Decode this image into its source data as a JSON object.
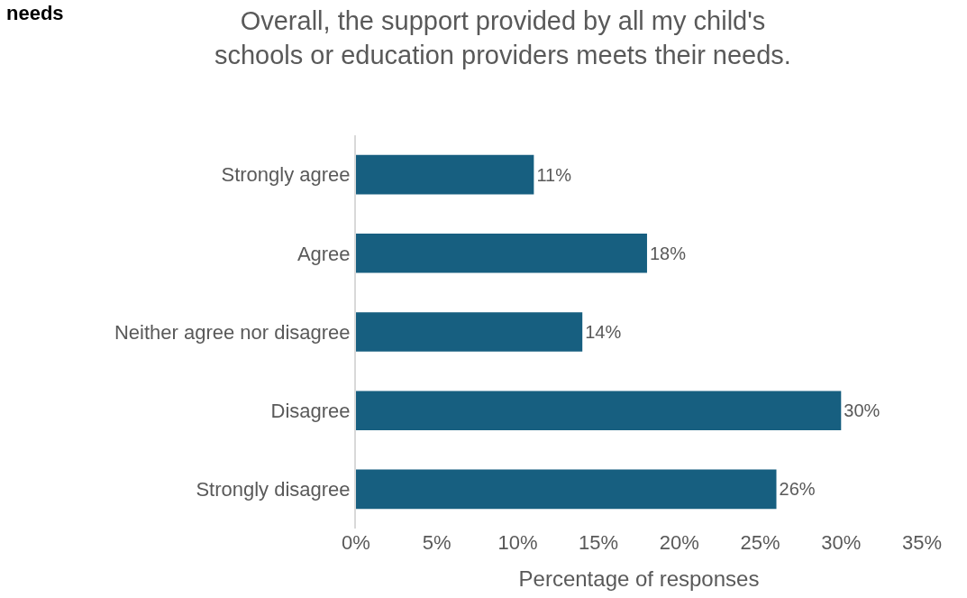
{
  "chart_data": {
    "type": "bar",
    "orientation": "horizontal",
    "title": "Overall, the support provided by all my child's\nschools or education providers meets their needs.",
    "xlabel": "Percentage of responses",
    "categories": [
      "Strongly agree",
      "Agree",
      "Neither agree nor disagree",
      "Disagree",
      "Strongly disagree"
    ],
    "values": [
      11,
      18,
      14,
      30,
      26
    ],
    "value_labels": [
      "11%",
      "18%",
      "14%",
      "30%",
      "26%"
    ],
    "color": "#175f80",
    "xlim": [
      0,
      35
    ],
    "xticks": [
      {
        "value": 0,
        "label": "0%"
      },
      {
        "value": 5,
        "label": "5%"
      },
      {
        "value": 10,
        "label": "10%"
      },
      {
        "value": 15,
        "label": "15%"
      },
      {
        "value": 20,
        "label": "20%"
      },
      {
        "value": 25,
        "label": "25%"
      },
      {
        "value": 30,
        "label": "30%"
      },
      {
        "value": 35,
        "label": "35%"
      }
    ],
    "annotations": [
      "needs"
    ]
  }
}
